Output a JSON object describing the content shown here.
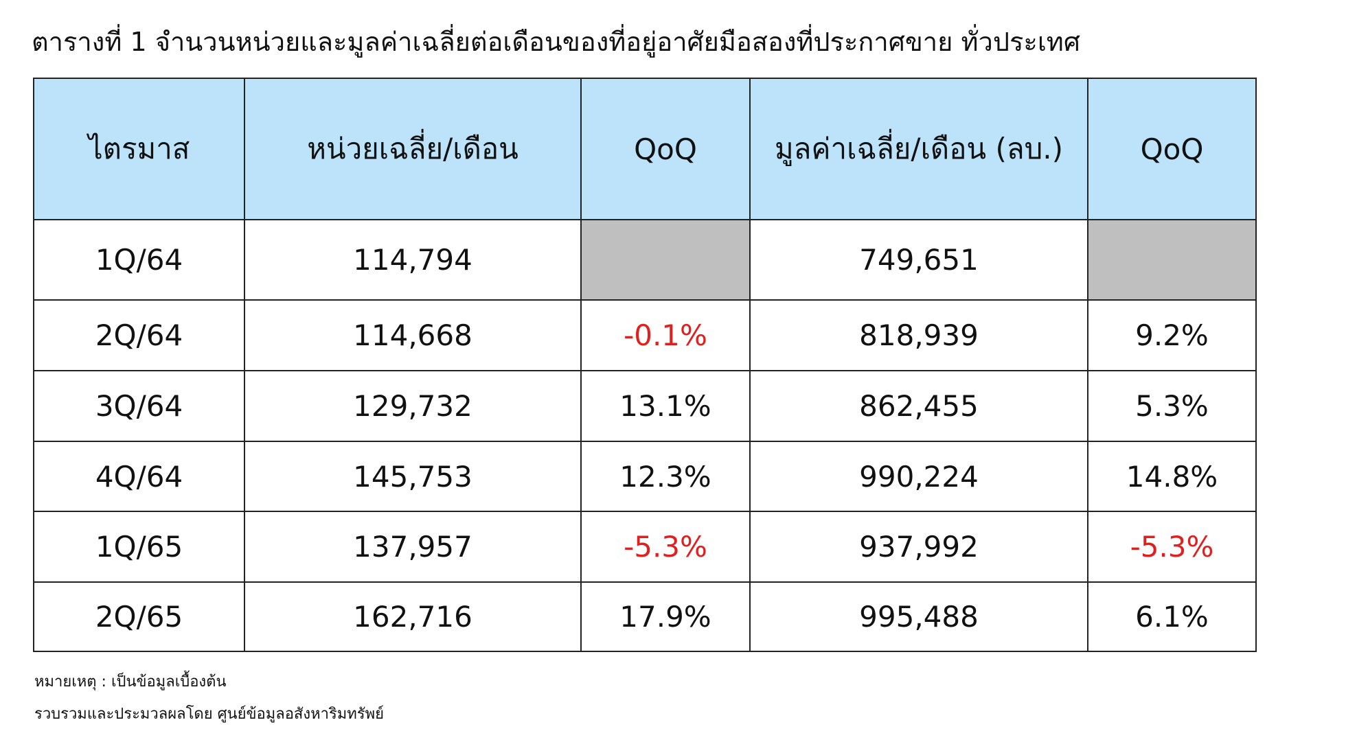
{
  "header": {
    "title": "ตารางที่ 1 จำนวนหน่วยและมูลค่าเฉลี่ยต่อเดือนของที่อยู่อาศัยมือสองที่ประกาศขาย ทั่วประเทศ"
  },
  "table": {
    "header_color": "#bde3fb",
    "empty_color": "#bfbfbf",
    "negative_color": "#e0201f",
    "headers": [
      "ไตรมาส",
      "หน่วยเฉลี่ย/เดือน",
      "QoQ",
      "มูลค่าเฉลี่ย/เดือน (ลบ.)",
      "QoQ"
    ],
    "rows": [
      [
        "1Q/64",
        "114,794",
        null,
        "749,651",
        null
      ],
      [
        "2Q/64",
        "114,668",
        "-0.1%",
        "818,939",
        "9.2%"
      ],
      [
        "3Q/64",
        "129,732",
        "13.1%",
        "862,455",
        "5.3%"
      ],
      [
        "4Q/64",
        "145,753",
        "12.3%",
        "990,224",
        "14.8%"
      ],
      [
        "1Q/65",
        "137,957",
        "-5.3%",
        "937,992",
        "-5.3%"
      ],
      [
        "2Q/65",
        "162,716",
        "17.9%",
        "995,488",
        "6.1%"
      ]
    ]
  },
  "notes": [
    "หมายเหตุ : เป็นข้อมูลเบื้องต้น",
    "รวบรวมและประมวลผลโดย ศูนย์ข้อมูลอสังหาริมทรัพย์"
  ]
}
